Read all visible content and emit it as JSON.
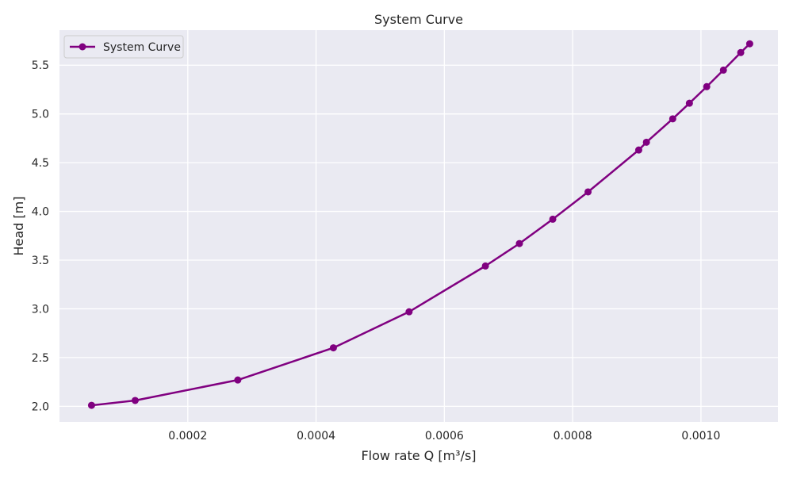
{
  "chart_data": {
    "type": "line",
    "title": "System Curve",
    "xlabel": "Flow rate Q [m³/s]",
    "ylabel": "Head [m]",
    "xlim": [
      0.0,
      0.00112
    ],
    "ylim": [
      1.84,
      5.86
    ],
    "xticks": [
      0.0002,
      0.0004,
      0.0006,
      0.0008,
      0.001
    ],
    "xtick_labels": [
      "0.0002",
      "0.0004",
      "0.0006",
      "0.0008",
      "0.0010"
    ],
    "yticks": [
      2.0,
      2.5,
      3.0,
      3.5,
      4.0,
      4.5,
      5.0,
      5.5
    ],
    "ytick_labels": [
      "2.0",
      "2.5",
      "3.0",
      "3.5",
      "4.0",
      "4.5",
      "5.0",
      "5.5"
    ],
    "grid": true,
    "legend_position": "top-left",
    "series": [
      {
        "name": "System Curve",
        "color": "#800080",
        "marker": "circle",
        "x": [
          5e-05,
          0.000118,
          0.000278,
          0.000427,
          0.000545,
          0.000664,
          0.000717,
          0.000769,
          0.000824,
          0.000903,
          0.000915,
          0.000956,
          0.000982,
          0.001009,
          0.001035,
          0.001062,
          0.001076
        ],
        "y": [
          2.01,
          2.06,
          2.27,
          2.6,
          2.97,
          3.44,
          3.67,
          3.92,
          4.2,
          4.63,
          4.71,
          4.95,
          5.11,
          5.28,
          5.45,
          5.63,
          5.72
        ]
      }
    ]
  }
}
